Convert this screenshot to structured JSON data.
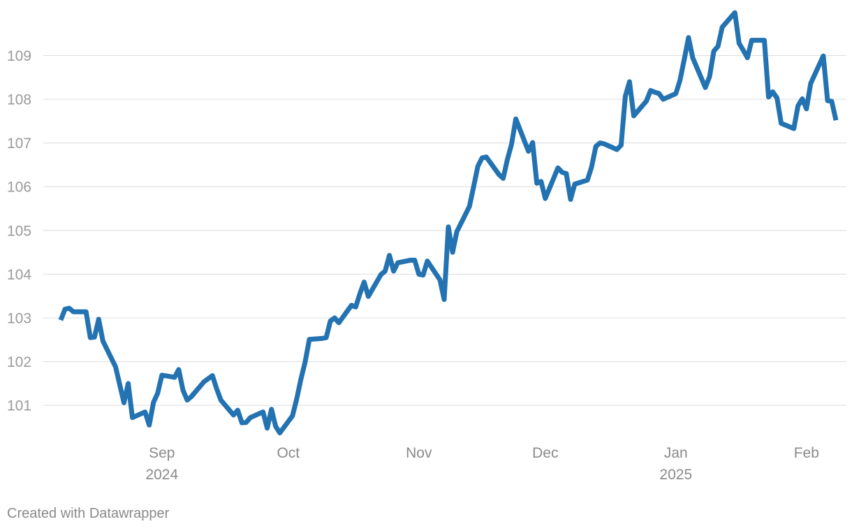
{
  "credit": "Created with Datawrapper",
  "colors": {
    "line": "#2372b1",
    "grid": "#dcdcdc",
    "tick_text": "#9a9a9a"
  },
  "chart_data": {
    "type": "line",
    "title": "",
    "xlabel": "",
    "ylabel": "",
    "x_range": [
      "2024-08-07",
      "2025-02-07"
    ],
    "ylim": [
      100.3,
      109.95
    ],
    "grid": true,
    "legend": "none",
    "y_ticks": [
      "101",
      "102",
      "103",
      "104",
      "105",
      "106",
      "107",
      "108",
      "109"
    ],
    "x_ticks": [
      {
        "date": "2024-09-01",
        "label": "Sep",
        "year": "2024"
      },
      {
        "date": "2024-10-01",
        "label": "Oct",
        "year": ""
      },
      {
        "date": "2024-11-01",
        "label": "Nov",
        "year": ""
      },
      {
        "date": "2024-12-01",
        "label": "Dec",
        "year": ""
      },
      {
        "date": "2025-01-01",
        "label": "Jan",
        "year": "2025"
      },
      {
        "date": "2025-02-01",
        "label": "Feb",
        "year": ""
      }
    ],
    "series": [
      {
        "points": [
          [
            "2024-08-08",
            102.95
          ],
          [
            "2024-08-09",
            103.2
          ],
          [
            "2024-08-10",
            103.22
          ],
          [
            "2024-08-11",
            103.14
          ],
          [
            "2024-08-14",
            103.14
          ],
          [
            "2024-08-15",
            102.55
          ],
          [
            "2024-08-16",
            102.56
          ],
          [
            "2024-08-17",
            102.97
          ],
          [
            "2024-08-18",
            102.47
          ],
          [
            "2024-08-21",
            101.88
          ],
          [
            "2024-08-23",
            101.06
          ],
          [
            "2024-08-24",
            101.5
          ],
          [
            "2024-08-25",
            100.72
          ],
          [
            "2024-08-28",
            100.85
          ],
          [
            "2024-08-29",
            100.55
          ],
          [
            "2024-08-30",
            101.07
          ],
          [
            "2024-08-31",
            101.28
          ],
          [
            "2024-09-01",
            101.69
          ],
          [
            "2024-09-03",
            101.66
          ],
          [
            "2024-09-04",
            101.64
          ],
          [
            "2024-09-05",
            101.82
          ],
          [
            "2024-09-06",
            101.35
          ],
          [
            "2024-09-07",
            101.12
          ],
          [
            "2024-09-08",
            101.2
          ],
          [
            "2024-09-11",
            101.54
          ],
          [
            "2024-09-13",
            101.68
          ],
          [
            "2024-09-14",
            101.38
          ],
          [
            "2024-09-15",
            101.12
          ],
          [
            "2024-09-18",
            100.78
          ],
          [
            "2024-09-19",
            100.89
          ],
          [
            "2024-09-20",
            100.6
          ],
          [
            "2024-09-21",
            100.61
          ],
          [
            "2024-09-22",
            100.72
          ],
          [
            "2024-09-25",
            100.85
          ],
          [
            "2024-09-26",
            100.48
          ],
          [
            "2024-09-27",
            100.91
          ],
          [
            "2024-09-28",
            100.52
          ],
          [
            "2024-09-29",
            100.37
          ],
          [
            "2024-10-02",
            100.76
          ],
          [
            "2024-10-03",
            101.15
          ],
          [
            "2024-10-04",
            101.6
          ],
          [
            "2024-10-05",
            101.99
          ],
          [
            "2024-10-06",
            102.51
          ],
          [
            "2024-10-09",
            102.53
          ],
          [
            "2024-10-10",
            102.55
          ],
          [
            "2024-10-11",
            102.93
          ],
          [
            "2024-10-12",
            103.0
          ],
          [
            "2024-10-13",
            102.89
          ],
          [
            "2024-10-16",
            103.29
          ],
          [
            "2024-10-17",
            103.25
          ],
          [
            "2024-10-18",
            103.55
          ],
          [
            "2024-10-19",
            103.82
          ],
          [
            "2024-10-20",
            103.49
          ],
          [
            "2024-10-23",
            103.99
          ],
          [
            "2024-10-24",
            104.07
          ],
          [
            "2024-10-25",
            104.43
          ],
          [
            "2024-10-26",
            104.07
          ],
          [
            "2024-10-27",
            104.26
          ],
          [
            "2024-10-30",
            104.32
          ],
          [
            "2024-10-31",
            104.32
          ],
          [
            "2024-11-01",
            104.0
          ],
          [
            "2024-11-02",
            103.98
          ],
          [
            "2024-11-03",
            104.3
          ],
          [
            "2024-11-06",
            103.87
          ],
          [
            "2024-11-07",
            103.42
          ],
          [
            "2024-11-08",
            105.08
          ],
          [
            "2024-11-09",
            104.5
          ],
          [
            "2024-11-10",
            104.97
          ],
          [
            "2024-11-13",
            105.55
          ],
          [
            "2024-11-14",
            106.0
          ],
          [
            "2024-11-15",
            106.47
          ],
          [
            "2024-11-16",
            106.66
          ],
          [
            "2024-11-17",
            106.68
          ],
          [
            "2024-11-20",
            106.28
          ],
          [
            "2024-11-21",
            106.19
          ],
          [
            "2024-11-22",
            106.62
          ],
          [
            "2024-11-23",
            106.97
          ],
          [
            "2024-11-24",
            107.55
          ],
          [
            "2024-11-27",
            106.81
          ],
          [
            "2024-11-28",
            107.01
          ],
          [
            "2024-11-29",
            106.08
          ],
          [
            "2024-11-30",
            106.12
          ],
          [
            "2024-12-01",
            105.73
          ],
          [
            "2024-12-04",
            106.43
          ],
          [
            "2024-12-05",
            106.33
          ],
          [
            "2024-12-06",
            106.3
          ],
          [
            "2024-12-07",
            105.71
          ],
          [
            "2024-12-08",
            106.06
          ],
          [
            "2024-12-11",
            106.15
          ],
          [
            "2024-12-12",
            106.45
          ],
          [
            "2024-12-13",
            106.92
          ],
          [
            "2024-12-14",
            107.0
          ],
          [
            "2024-12-15",
            106.98
          ],
          [
            "2024-12-18",
            106.85
          ],
          [
            "2024-12-19",
            106.95
          ],
          [
            "2024-12-20",
            108.07
          ],
          [
            "2024-12-21",
            108.4
          ],
          [
            "2024-12-22",
            107.62
          ],
          [
            "2024-12-25",
            107.96
          ],
          [
            "2024-12-26",
            108.2
          ],
          [
            "2024-12-27",
            108.16
          ],
          [
            "2024-12-28",
            108.13
          ],
          [
            "2024-12-29",
            108.0
          ],
          [
            "2025-01-01",
            108.13
          ],
          [
            "2025-01-02",
            108.44
          ],
          [
            "2025-01-03",
            108.92
          ],
          [
            "2025-01-04",
            109.41
          ],
          [
            "2025-01-05",
            108.95
          ],
          [
            "2025-01-08",
            108.27
          ],
          [
            "2025-01-09",
            108.52
          ],
          [
            "2025-01-10",
            109.1
          ],
          [
            "2025-01-11",
            109.21
          ],
          [
            "2025-01-12",
            109.65
          ],
          [
            "2025-01-15",
            109.98
          ],
          [
            "2025-01-16",
            109.28
          ],
          [
            "2025-01-17",
            109.12
          ],
          [
            "2025-01-18",
            108.95
          ],
          [
            "2025-01-19",
            109.35
          ],
          [
            "2025-01-22",
            109.35
          ],
          [
            "2025-01-23",
            108.05
          ],
          [
            "2025-01-24",
            108.17
          ],
          [
            "2025-01-25",
            108.03
          ],
          [
            "2025-01-26",
            107.45
          ],
          [
            "2025-01-29",
            107.33
          ],
          [
            "2025-01-30",
            107.85
          ],
          [
            "2025-01-31",
            108.01
          ],
          [
            "2025-02-01",
            107.78
          ],
          [
            "2025-02-02",
            108.36
          ],
          [
            "2025-02-05",
            108.99
          ],
          [
            "2025-02-06",
            107.97
          ],
          [
            "2025-02-07",
            107.95
          ],
          [
            "2025-02-08",
            107.52
          ]
        ]
      }
    ]
  }
}
